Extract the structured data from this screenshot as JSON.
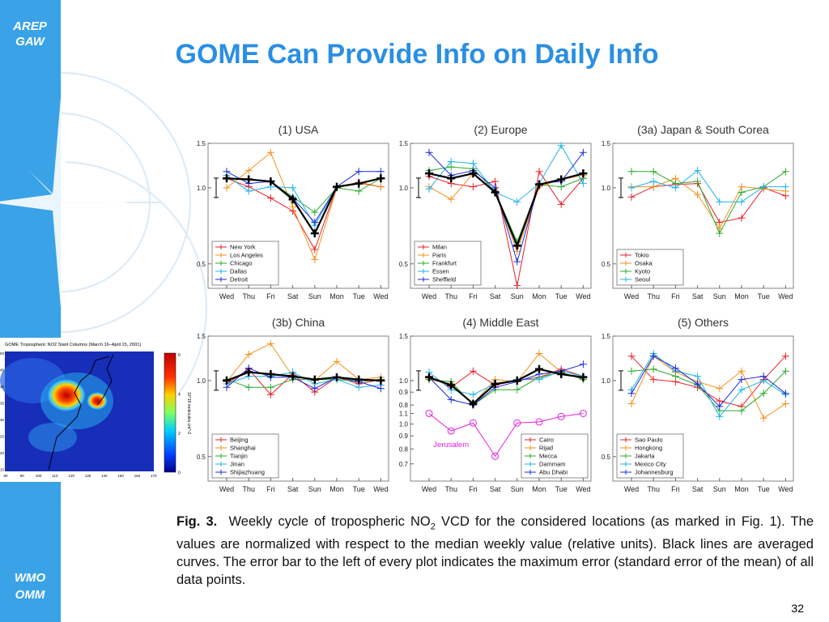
{
  "sidebar": {
    "top": [
      "AREP",
      "GAW"
    ],
    "bottom": [
      "WMO",
      "OMM"
    ]
  },
  "title": "GOME Can Provide Info on Daily Info",
  "chart_data": [
    {
      "type": "line",
      "title": "(1) USA",
      "log_scale": true,
      "legend": "lower left",
      "categories": [
        "Wed",
        "Thu",
        "Fri",
        "Sat",
        "Sun",
        "Mon",
        "Tue",
        "Wed"
      ],
      "ylim": [
        0.4,
        1.5
      ],
      "yticks": [
        1.5,
        {
          "value": 1,
          "label": "1.0"
        },
        0.5
      ],
      "series": [
        {
          "name": "New York",
          "color": "#e8202a",
          "values": [
            1.09,
            1.01,
            0.91,
            0.81,
            0.57,
            1.01,
            1.05,
            1.01
          ]
        },
        {
          "name": "Los Angeles",
          "color": "#f5901e",
          "values": [
            1.0,
            1.17,
            1.38,
            0.84,
            0.52,
            1.0,
            1.04,
            1.01
          ]
        },
        {
          "name": "Chicago",
          "color": "#2eaa2e",
          "values": [
            1.09,
            1.08,
            1.06,
            0.92,
            0.8,
            1.0,
            0.97,
            1.09
          ]
        },
        {
          "name": "Dallas",
          "color": "#1fb4e8",
          "values": [
            1.12,
            0.97,
            1.01,
            1.0,
            0.71,
            1.01,
            1.04,
            1.09
          ]
        },
        {
          "name": "Detroit",
          "color": "#1c2bd8",
          "values": [
            1.16,
            1.04,
            1.06,
            0.91,
            0.73,
            1.01,
            1.16,
            1.16
          ]
        },
        {
          "color": "#000000",
          "values": [
            1.09,
            1.08,
            1.06,
            0.9,
            0.66,
            1.01,
            1.04,
            1.09
          ]
        }
      ]
    },
    {
      "type": "line",
      "title": "(2) Europe",
      "log_scale": true,
      "legend": "lower left",
      "categories": [
        "Wed",
        "Thu",
        "Fri",
        "Sat",
        "Sun",
        "Mon",
        "Tue",
        "Wed"
      ],
      "ylim": [
        0.4,
        1.5
      ],
      "yticks": [
        1.5,
        {
          "value": 1,
          "label": "1.0"
        },
        0.5
      ],
      "series": [
        {
          "name": "Milan",
          "color": "#e8202a",
          "values": [
            1.11,
            1.04,
            1.01,
            1.06,
            0.41,
            1.16,
            0.86,
            1.09
          ]
        },
        {
          "name": "Paris",
          "color": "#f5901e",
          "values": [
            1.01,
            0.9,
            1.14,
            0.97,
            0.56,
            1.01,
            1.08,
            1.12
          ]
        },
        {
          "name": "Frankfurt",
          "color": "#2eaa2e",
          "values": [
            1.17,
            1.21,
            1.19,
            0.97,
            0.61,
            1.03,
            1.01,
            1.09
          ]
        },
        {
          "name": "Essen",
          "color": "#1fb4e8",
          "values": [
            0.99,
            1.27,
            1.25,
            0.96,
            0.88,
            1.04,
            1.47,
            1.04
          ]
        },
        {
          "name": "Sheffield",
          "color": "#1c2bd8",
          "values": [
            1.38,
            1.12,
            1.17,
            1.0,
            0.51,
            1.04,
            1.06,
            1.38
          ]
        },
        {
          "color": "#000000",
          "values": [
            1.14,
            1.09,
            1.14,
            0.96,
            0.59,
            1.03,
            1.08,
            1.14
          ]
        }
      ]
    },
    {
      "type": "line",
      "title": "(3a) Japan & South Corea",
      "log_scale": true,
      "legend": "lower left",
      "categories": [
        "Wed",
        "Thu",
        "Fri",
        "Sat",
        "Sun",
        "Mon",
        "Tue",
        "Wed"
      ],
      "ylim": [
        0.4,
        1.5
      ],
      "yticks": [
        1.5,
        {
          "value": 1,
          "label": "1.0"
        },
        0.5
      ],
      "series": [
        {
          "name": "Tokio",
          "color": "#e8202a",
          "values": [
            0.92,
            1.01,
            1.03,
            1.04,
            0.73,
            0.76,
            1.0,
            0.93
          ]
        },
        {
          "name": "Osaka",
          "color": "#f5901e",
          "values": [
            1.01,
            1.01,
            1.09,
            0.94,
            0.69,
            1.01,
            0.99,
            0.97
          ]
        },
        {
          "name": "Kyoto",
          "color": "#2eaa2e",
          "values": [
            1.16,
            1.16,
            1.04,
            1.06,
            0.66,
            0.96,
            1.01,
            1.16
          ]
        },
        {
          "name": "Seoul",
          "color": "#1fb4e8",
          "values": [
            1.0,
            1.06,
            1.0,
            1.17,
            0.88,
            0.88,
            1.01,
            1.01
          ]
        }
      ]
    },
    {
      "type": "line",
      "title": "(3b) China",
      "log_scale": true,
      "legend": "lower left",
      "categories": [
        "Wed",
        "Thu",
        "Fri",
        "Sat",
        "Sun",
        "Mon",
        "Tue",
        "Wed"
      ],
      "ylim": [
        0.4,
        1.5
      ],
      "yticks": [
        1.5,
        {
          "value": 1,
          "label": "1.0"
        },
        0.5
      ],
      "series": [
        {
          "name": "Beijing",
          "color": "#e8202a",
          "values": [
            0.97,
            1.11,
            0.88,
            1.06,
            0.9,
            1.03,
            0.97,
            1.01
          ]
        },
        {
          "name": "Shanghai",
          "color": "#f5901e",
          "values": [
            0.99,
            1.27,
            1.4,
            1.04,
            1.0,
            1.19,
            1.01,
            1.03
          ]
        },
        {
          "name": "Tianjin",
          "color": "#2eaa2e",
          "values": [
            1.01,
            0.94,
            0.94,
            1.01,
            1.01,
            1.01,
            0.99,
            1.01
          ]
        },
        {
          "name": "Jinan",
          "color": "#1fb4e8",
          "values": [
            0.97,
            1.04,
            1.04,
            1.08,
            0.97,
            1.01,
            0.94,
            0.96
          ]
        },
        {
          "name": "Shijiazhuang",
          "color": "#1c2bd8",
          "values": [
            0.94,
            1.12,
            1.03,
            1.03,
            0.93,
            1.03,
            0.99,
            0.93
          ]
        },
        {
          "color": "#000000",
          "values": [
            1.0,
            1.08,
            1.06,
            1.04,
            1.01,
            1.03,
            1.01,
            1.0
          ]
        }
      ]
    },
    {
      "type": "line",
      "title": "(4) Middle East",
      "log_scale": true,
      "legend": "lower right",
      "categories": [
        "Wed",
        "Thu",
        "Fri",
        "Sat",
        "Sun",
        "Mon",
        "Tue",
        "Wed"
      ],
      "ylim": [
        0.4,
        1.5
      ],
      "yticks": [
        1.5,
        {
          "value": 1,
          "label": "1.0"
        },
        0.9,
        0.8
      ],
      "y2lim": [
        0.6,
        2.2
      ],
      "y2ticks": [
        1.1,
        {
          "value": 1,
          "label": "1.0"
        },
        0.9,
        0.8,
        0.7
      ],
      "series": [
        {
          "name": "Cairo",
          "color": "#e8202a",
          "values": [
            1.04,
            0.94,
            1.09,
            0.96,
            1.0,
            1.03,
            1.11,
            1.04
          ]
        },
        {
          "name": "Rijad",
          "color": "#f5901e",
          "values": [
            1.01,
            0.97,
            0.81,
            1.01,
            0.99,
            1.28,
            1.08,
            1.01
          ]
        },
        {
          "name": "Mecca",
          "color": "#2eaa2e",
          "values": [
            1.01,
            0.99,
            0.8,
            0.92,
            0.92,
            1.03,
            1.08,
            1.01
          ]
        },
        {
          "name": "Dammam",
          "color": "#1fb4e8",
          "values": [
            1.08,
            0.92,
            0.88,
            0.97,
            1.01,
            1.01,
            1.09,
            1.04
          ]
        },
        {
          "name": "Abu Dhabi",
          "color": "#1c2bd8",
          "values": [
            1.03,
            0.84,
            0.8,
            0.94,
            0.99,
            1.06,
            1.09,
            1.16
          ]
        },
        {
          "color": "#000000",
          "values": [
            1.03,
            0.96,
            0.81,
            0.97,
            1.0,
            1.11,
            1.06,
            1.03
          ]
        },
        {
          "name": "Jerusalem",
          "color": "#e81ee0",
          "axis": "y2",
          "values": [
            1.1,
            0.94,
            1.01,
            0.75,
            1.01,
            1.02,
            1.07,
            1.1
          ]
        }
      ]
    },
    {
      "type": "line",
      "title": "(5) Others",
      "log_scale": true,
      "legend": "lower left",
      "categories": [
        "Wed",
        "Thu",
        "Fri",
        "Sat",
        "Sun",
        "Mon",
        "Tue",
        "Wed"
      ],
      "ylim": [
        0.4,
        1.5
      ],
      "yticks": [
        1.5,
        {
          "value": 1,
          "label": "1.0"
        },
        0.5
      ],
      "series": [
        {
          "name": "Sao Paulo",
          "color": "#e8202a",
          "values": [
            1.25,
            1.01,
            0.99,
            0.94,
            0.83,
            0.79,
            1.01,
            1.25
          ]
        },
        {
          "name": "Hongkong",
          "color": "#f5901e",
          "values": [
            0.81,
            1.25,
            1.08,
            0.99,
            0.93,
            1.09,
            0.71,
            0.81
          ]
        },
        {
          "name": "Jakarta",
          "color": "#2eaa2e",
          "values": [
            1.09,
            1.11,
            1.04,
            0.96,
            0.76,
            0.76,
            0.89,
            1.09
          ]
        },
        {
          "name": "Mexico City",
          "color": "#1fb4e8",
          "values": [
            0.92,
            1.28,
            1.09,
            1.04,
            0.72,
            0.92,
            1.0,
            0.88
          ]
        },
        {
          "name": "Johannesburg",
          "color": "#1c2bd8",
          "values": [
            0.89,
            1.25,
            1.12,
            0.97,
            0.79,
            1.01,
            1.04,
            0.89
          ]
        }
      ]
    }
  ],
  "map": {
    "title": "GOME Tropospheric NO2 Slant Columns (March 16–April 15, 2001)",
    "colorbar_label": "10^15 molecules cm^-2",
    "colorbar_ticks": [
      "6",
      "4",
      "2",
      "0"
    ],
    "xticks": [
      "80",
      "90",
      "100",
      "110",
      "120",
      "130",
      "140",
      "150",
      "160",
      "170"
    ],
    "yticks": [
      "50",
      "45",
      "40",
      "35",
      "30",
      "25",
      "20",
      "15"
    ]
  },
  "caption": {
    "label": "Fig. 3.",
    "text_before": "Weekly cycle of tropospheric NO",
    "subscript": "2",
    "text_after": " VCD for the considered locations (as marked in Fig. 1).  The values are normalized with respect to the median weekly value (relative units). Black lines are averaged curves.  The error bar to the left of every plot indicates the maximum error (standard error of the mean) of all data points."
  },
  "page_number": "32"
}
